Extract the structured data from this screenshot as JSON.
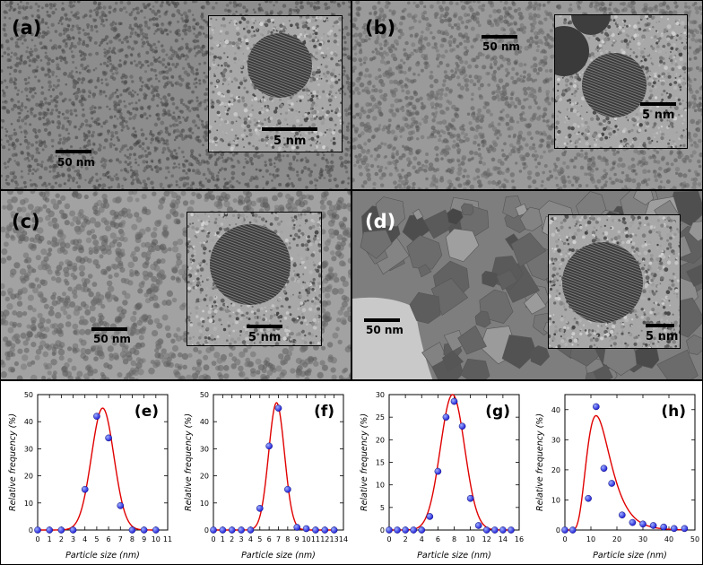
{
  "panels": [
    {
      "label": "(a)",
      "scale_main": "50 nm",
      "scale_inset": "5 nm",
      "bg": "#8d8d8d"
    },
    {
      "label": "(b)",
      "scale_main": "50 nm",
      "scale_inset": "5 nm",
      "bg": "#9a9a9a"
    },
    {
      "label": "(c)",
      "scale_main": "50 nm",
      "scale_inset": "5 nm",
      "bg": "#a2a2a2"
    },
    {
      "label": "(d)",
      "scale_main": "50 nm",
      "scale_inset": "5 nm",
      "bg": "#b4b4b4"
    }
  ],
  "chart_data": [
    {
      "type": "scatter",
      "label": "(e)",
      "xlabel": "Particle size (nm)",
      "ylabel": "Relative frequency (%)",
      "xlim": [
        0,
        11
      ],
      "ylim": [
        0,
        50
      ],
      "xticks": [
        0,
        1,
        2,
        3,
        4,
        5,
        6,
        7,
        8,
        9,
        10,
        11
      ],
      "yticks": [
        0,
        10,
        20,
        30,
        40,
        50
      ],
      "points": {
        "x": [
          0,
          1,
          2,
          3,
          4,
          5,
          6,
          7,
          8,
          9,
          10
        ],
        "y": [
          0,
          0,
          0,
          0,
          15,
          42,
          34,
          9,
          0,
          0,
          0
        ]
      },
      "fit": {
        "type": "gaussian",
        "center": 5.5,
        "sigma": 0.95,
        "amplitude": 45
      }
    },
    {
      "type": "scatter",
      "label": "(f)",
      "xlabel": "Particle size (nm)",
      "ylabel": "Relative frequency (%)",
      "xlim": [
        0,
        14
      ],
      "ylim": [
        0,
        50
      ],
      "xticks": [
        0,
        1,
        2,
        3,
        4,
        5,
        6,
        7,
        8,
        9,
        10,
        11,
        12,
        13,
        14
      ],
      "yticks": [
        0,
        10,
        20,
        30,
        40,
        50
      ],
      "points": {
        "x": [
          0,
          1,
          2,
          3,
          4,
          5,
          6,
          7,
          8,
          9,
          10,
          11,
          12,
          13
        ],
        "y": [
          0,
          0,
          0,
          0,
          0,
          8,
          31,
          45,
          15,
          1,
          0.5,
          0,
          0,
          0
        ]
      },
      "fit": {
        "type": "gaussian",
        "center": 6.8,
        "sigma": 0.85,
        "amplitude": 47
      }
    },
    {
      "type": "scatter",
      "label": "(g)",
      "xlabel": "Particle size (nm)",
      "ylabel": "Relative frequency (%)",
      "xlim": [
        0,
        16
      ],
      "ylim": [
        0,
        30
      ],
      "xticks": [
        0,
        2,
        4,
        6,
        8,
        10,
        12,
        14,
        16
      ],
      "yticks": [
        0,
        5,
        10,
        15,
        20,
        25,
        30
      ],
      "points": {
        "x": [
          0,
          1,
          2,
          3,
          4,
          5,
          6,
          7,
          8,
          9,
          10,
          11,
          12,
          13,
          14,
          15
        ],
        "y": [
          0,
          0,
          0,
          0,
          0,
          3,
          13,
          25,
          28.5,
          23,
          7,
          1,
          0,
          0,
          0,
          0
        ]
      },
      "fit": {
        "type": "gaussian",
        "center": 7.8,
        "sigma": 1.5,
        "amplitude": 30
      }
    },
    {
      "type": "scatter",
      "label": "(h)",
      "xlabel": "Particle size (nm)",
      "ylabel": "Relative frequency (%)",
      "xlim": [
        0,
        50
      ],
      "ylim": [
        0,
        45
      ],
      "xticks": [
        0,
        10,
        20,
        30,
        40,
        50
      ],
      "yticks": [
        0,
        10,
        20,
        30,
        40
      ],
      "points": {
        "x": [
          0,
          3,
          9,
          12,
          15,
          18,
          22,
          26,
          30,
          34,
          38,
          42,
          46
        ],
        "y": [
          0,
          0,
          10.5,
          41,
          20.5,
          15.5,
          5,
          2.5,
          2,
          1.5,
          1,
          0.5,
          0.5
        ]
      },
      "fit": {
        "type": "lognormal",
        "mode": 12,
        "amplitude": 38
      }
    }
  ],
  "colors": {
    "fit_line": "#e00000",
    "marker": "#1f1fd6",
    "marker_highlight": "#9db0ff"
  }
}
